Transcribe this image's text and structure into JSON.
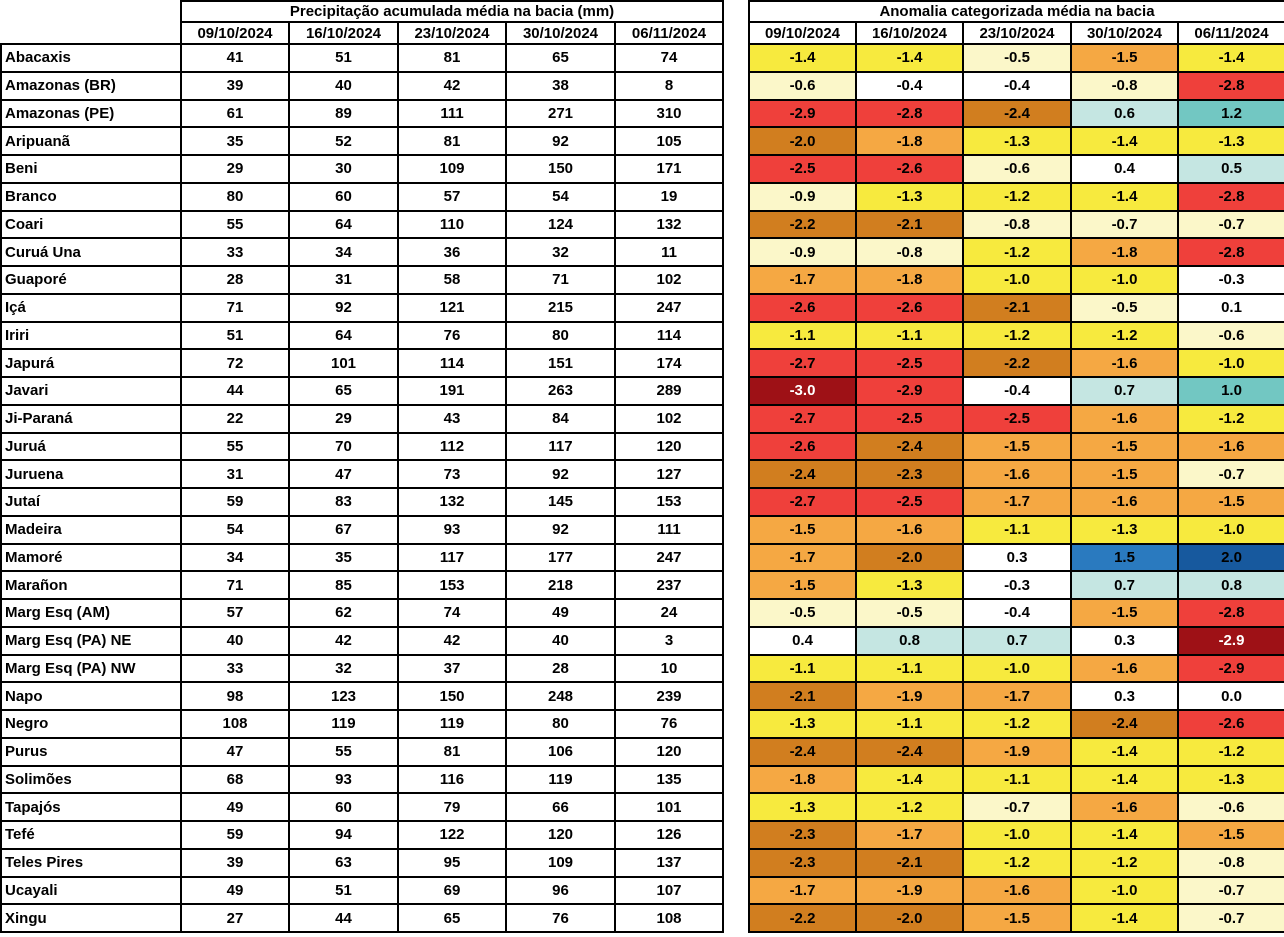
{
  "chart_data": {
    "type": "table",
    "tables": [
      {
        "id": "precipitation",
        "title": "Precipitação acumulada média na bacia (mm)",
        "columns": [
          "09/10/2024",
          "16/10/2024",
          "23/10/2024",
          "30/10/2024",
          "06/11/2024"
        ]
      },
      {
        "id": "anomaly",
        "title": "Anomalia categorizada média na bacia",
        "columns": [
          "09/10/2024",
          "16/10/2024",
          "23/10/2024",
          "30/10/2024",
          "06/11/2024"
        ]
      }
    ],
    "basins": [
      "Abacaxis",
      "Amazonas (BR)",
      "Amazonas (PE)",
      "Aripuanã",
      "Beni",
      "Branco",
      "Coari",
      "Curuá Una",
      "Guaporé",
      "Içá",
      "Iriri",
      "Japurá",
      "Javari",
      "Ji-Paraná",
      "Juruá",
      "Juruena",
      "Jutaí",
      "Madeira",
      "Mamoré",
      "Marañon",
      "Marg Esq (AM)",
      "Marg Esq (PA) NE",
      "Marg Esq (PA) NW",
      "Napo",
      "Negro",
      "Purus",
      "Solimões",
      "Tapajós",
      "Tefé",
      "Teles Pires",
      "Ucayali",
      "Xingu"
    ],
    "precipitation": [
      [
        41,
        51,
        81,
        65,
        74
      ],
      [
        39,
        40,
        42,
        38,
        8
      ],
      [
        61,
        89,
        111,
        271,
        310
      ],
      [
        35,
        52,
        81,
        92,
        105
      ],
      [
        29,
        30,
        109,
        150,
        171
      ],
      [
        80,
        60,
        57,
        54,
        19
      ],
      [
        55,
        64,
        110,
        124,
        132
      ],
      [
        33,
        34,
        36,
        32,
        11
      ],
      [
        28,
        31,
        58,
        71,
        102
      ],
      [
        71,
        92,
        121,
        215,
        247
      ],
      [
        51,
        64,
        76,
        80,
        114
      ],
      [
        72,
        101,
        114,
        151,
        174
      ],
      [
        44,
        65,
        191,
        263,
        289
      ],
      [
        22,
        29,
        43,
        84,
        102
      ],
      [
        55,
        70,
        112,
        117,
        120
      ],
      [
        31,
        47,
        73,
        92,
        127
      ],
      [
        59,
        83,
        132,
        145,
        153
      ],
      [
        54,
        67,
        93,
        92,
        111
      ],
      [
        34,
        35,
        117,
        177,
        247
      ],
      [
        71,
        85,
        153,
        218,
        237
      ],
      [
        57,
        62,
        74,
        49,
        24
      ],
      [
        40,
        42,
        42,
        40,
        3
      ],
      [
        33,
        32,
        37,
        28,
        10
      ],
      [
        98,
        123,
        150,
        248,
        239
      ],
      [
        108,
        119,
        119,
        80,
        76
      ],
      [
        47,
        55,
        81,
        106,
        120
      ],
      [
        68,
        93,
        116,
        119,
        135
      ],
      [
        49,
        60,
        79,
        66,
        101
      ],
      [
        59,
        94,
        122,
        120,
        126
      ],
      [
        39,
        63,
        95,
        109,
        137
      ],
      [
        49,
        51,
        69,
        96,
        107
      ],
      [
        27,
        44,
        65,
        76,
        108
      ]
    ],
    "anomaly": [
      [
        "-1.4",
        "-1.4",
        "-0.5",
        "-1.5",
        "-1.4"
      ],
      [
        "-0.6",
        "-0.4",
        "-0.4",
        "-0.8",
        "-2.8"
      ],
      [
        "-2.9",
        "-2.8",
        "-2.4",
        "0.6",
        "1.2"
      ],
      [
        "-2.0",
        "-1.8",
        "-1.3",
        "-1.4",
        "-1.3"
      ],
      [
        "-2.5",
        "-2.6",
        "-0.6",
        "0.4",
        "0.5"
      ],
      [
        "-0.9",
        "-1.3",
        "-1.2",
        "-1.4",
        "-2.8"
      ],
      [
        "-2.2",
        "-2.1",
        "-0.8",
        "-0.7",
        "-0.7"
      ],
      [
        "-0.9",
        "-0.8",
        "-1.2",
        "-1.8",
        "-2.8"
      ],
      [
        "-1.7",
        "-1.8",
        "-1.0",
        "-1.0",
        "-0.3"
      ],
      [
        "-2.6",
        "-2.6",
        "-2.1",
        "-0.5",
        "0.1"
      ],
      [
        "-1.1",
        "-1.1",
        "-1.2",
        "-1.2",
        "-0.6"
      ],
      [
        "-2.7",
        "-2.5",
        "-2.2",
        "-1.6",
        "-1.0"
      ],
      [
        "-3.0",
        "-2.9",
        "-0.4",
        "0.7",
        "1.0"
      ],
      [
        "-2.7",
        "-2.5",
        "-2.5",
        "-1.6",
        "-1.2"
      ],
      [
        "-2.6",
        "-2.4",
        "-1.5",
        "-1.5",
        "-1.6"
      ],
      [
        "-2.4",
        "-2.3",
        "-1.6",
        "-1.5",
        "-0.7"
      ],
      [
        "-2.7",
        "-2.5",
        "-1.7",
        "-1.6",
        "-1.5"
      ],
      [
        "-1.5",
        "-1.6",
        "-1.1",
        "-1.3",
        "-1.0"
      ],
      [
        "-1.7",
        "-2.0",
        "0.3",
        "1.5",
        "2.0"
      ],
      [
        "-1.5",
        "-1.3",
        "-0.3",
        "0.7",
        "0.8"
      ],
      [
        "-0.5",
        "-0.5",
        "-0.4",
        "-1.5",
        "-2.8"
      ],
      [
        "0.4",
        "0.8",
        "0.7",
        "0.3",
        "-2.9"
      ],
      [
        "-1.1",
        "-1.1",
        "-1.0",
        "-1.6",
        "-2.9"
      ],
      [
        "-2.1",
        "-1.9",
        "-1.7",
        "0.3",
        "0.0"
      ],
      [
        "-1.3",
        "-1.1",
        "-1.2",
        "-2.4",
        "-2.6"
      ],
      [
        "-2.4",
        "-2.4",
        "-1.9",
        "-1.4",
        "-1.2"
      ],
      [
        "-1.8",
        "-1.4",
        "-1.1",
        "-1.4",
        "-1.3"
      ],
      [
        "-1.3",
        "-1.2",
        "-0.7",
        "-1.6",
        "-0.6"
      ],
      [
        "-2.3",
        "-1.7",
        "-1.0",
        "-1.4",
        "-1.5"
      ],
      [
        "-2.3",
        "-2.1",
        "-1.2",
        "-1.2",
        "-0.8"
      ],
      [
        "-1.7",
        "-1.9",
        "-1.6",
        "-1.0",
        "-0.7"
      ],
      [
        "-2.2",
        "-2.0",
        "-1.5",
        "-1.4",
        "-0.7"
      ]
    ],
    "anomaly_category": [
      [
        "y",
        "y",
        "c",
        "o",
        "y"
      ],
      [
        "c",
        "w",
        "w",
        "c",
        "r"
      ],
      [
        "r",
        "r",
        "do",
        "lc",
        "t"
      ],
      [
        "do",
        "o",
        "y",
        "y",
        "y"
      ],
      [
        "r",
        "r",
        "c",
        "w",
        "lc"
      ],
      [
        "c",
        "y",
        "y",
        "y",
        "r"
      ],
      [
        "do",
        "do",
        "c",
        "c",
        "c"
      ],
      [
        "c",
        "c",
        "y",
        "o",
        "r"
      ],
      [
        "o",
        "o",
        "y",
        "y",
        "w"
      ],
      [
        "r",
        "r",
        "do",
        "c",
        "w"
      ],
      [
        "y",
        "y",
        "y",
        "y",
        "c"
      ],
      [
        "r",
        "r",
        "do",
        "o",
        "y"
      ],
      [
        "dr",
        "r",
        "w",
        "lc",
        "t"
      ],
      [
        "r",
        "r",
        "r",
        "o",
        "y"
      ],
      [
        "r",
        "do",
        "o",
        "o",
        "o"
      ],
      [
        "do",
        "do",
        "o",
        "o",
        "c"
      ],
      [
        "r",
        "r",
        "o",
        "o",
        "o"
      ],
      [
        "o",
        "o",
        "y",
        "y",
        "y"
      ],
      [
        "o",
        "do",
        "w",
        "b",
        "db"
      ],
      [
        "o",
        "y",
        "w",
        "lc",
        "lc"
      ],
      [
        "c",
        "c",
        "w",
        "o",
        "r"
      ],
      [
        "w",
        "lc",
        "lc",
        "w",
        "dr"
      ],
      [
        "y",
        "y",
        "y",
        "o",
        "r"
      ],
      [
        "do",
        "o",
        "o",
        "w",
        "w"
      ],
      [
        "y",
        "y",
        "y",
        "do",
        "r"
      ],
      [
        "do",
        "do",
        "o",
        "y",
        "y"
      ],
      [
        "o",
        "y",
        "y",
        "y",
        "y"
      ],
      [
        "y",
        "y",
        "c",
        "o",
        "c"
      ],
      [
        "do",
        "o",
        "y",
        "y",
        "o"
      ],
      [
        "do",
        "do",
        "y",
        "y",
        "c"
      ],
      [
        "o",
        "o",
        "o",
        "y",
        "c"
      ],
      [
        "do",
        "do",
        "o",
        "y",
        "c"
      ]
    ]
  },
  "palette": {
    "w": {
      "bg": "#FFFFFF",
      "fg": "#000000"
    },
    "c": {
      "bg": "#FBF7C9",
      "fg": "#000000"
    },
    "y": {
      "bg": "#F7EA3E",
      "fg": "#000000"
    },
    "o": {
      "bg": "#F5A843",
      "fg": "#000000"
    },
    "do": {
      "bg": "#D17E1F",
      "fg": "#000000"
    },
    "r": {
      "bg": "#EF403B",
      "fg": "#000000"
    },
    "dr": {
      "bg": "#9E1116",
      "fg": "#FFFFFF"
    },
    "lc": {
      "bg": "#C5E6E2",
      "fg": "#000000"
    },
    "t": {
      "bg": "#72C7C2",
      "fg": "#000000"
    },
    "b": {
      "bg": "#2A7ABF",
      "fg": "#000000"
    },
    "db": {
      "bg": "#17599E",
      "fg": "#000000"
    }
  }
}
